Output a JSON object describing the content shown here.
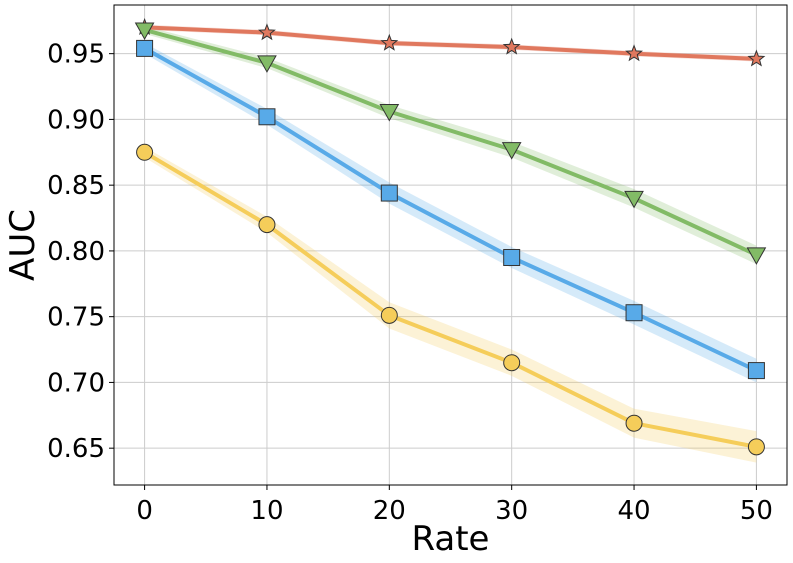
{
  "chart_data": {
    "type": "line",
    "title": "",
    "xlabel": "Rate",
    "ylabel": "AUC",
    "x": [
      0,
      10,
      20,
      30,
      40,
      50
    ],
    "xlim": [
      -2.5,
      52.5
    ],
    "ylim": [
      0.622,
      0.987
    ],
    "xticks": [
      0,
      10,
      20,
      30,
      40,
      50
    ],
    "yticks": [
      0.65,
      0.7,
      0.75,
      0.8,
      0.85,
      0.9,
      0.95
    ],
    "xtick_labels": [
      "0",
      "10",
      "20",
      "30",
      "40",
      "50"
    ],
    "ytick_labels": [
      "0.65",
      "0.70",
      "0.75",
      "0.80",
      "0.85",
      "0.90",
      "0.95"
    ],
    "grid": true,
    "series": [
      {
        "color": "#e0785e",
        "marker": "star",
        "values": [
          0.97,
          0.966,
          0.958,
          0.955,
          0.95,
          0.946
        ],
        "band": [
          0.002,
          0.002,
          0.002,
          0.002,
          0.002,
          0.002
        ]
      },
      {
        "color": "#82bb66",
        "marker": "triangle-down",
        "values": [
          0.968,
          0.943,
          0.906,
          0.877,
          0.84,
          0.797
        ],
        "band": [
          0.003,
          0.004,
          0.005,
          0.006,
          0.007,
          0.007
        ]
      },
      {
        "color": "#58aae8",
        "marker": "square",
        "values": [
          0.954,
          0.902,
          0.844,
          0.795,
          0.753,
          0.709
        ],
        "band": [
          0.004,
          0.006,
          0.008,
          0.008,
          0.009,
          0.009
        ]
      },
      {
        "color": "#f5cd5a",
        "marker": "circle",
        "values": [
          0.875,
          0.82,
          0.751,
          0.715,
          0.669,
          0.651
        ],
        "band": [
          0.004,
          0.006,
          0.01,
          0.01,
          0.011,
          0.012
        ]
      }
    ]
  }
}
